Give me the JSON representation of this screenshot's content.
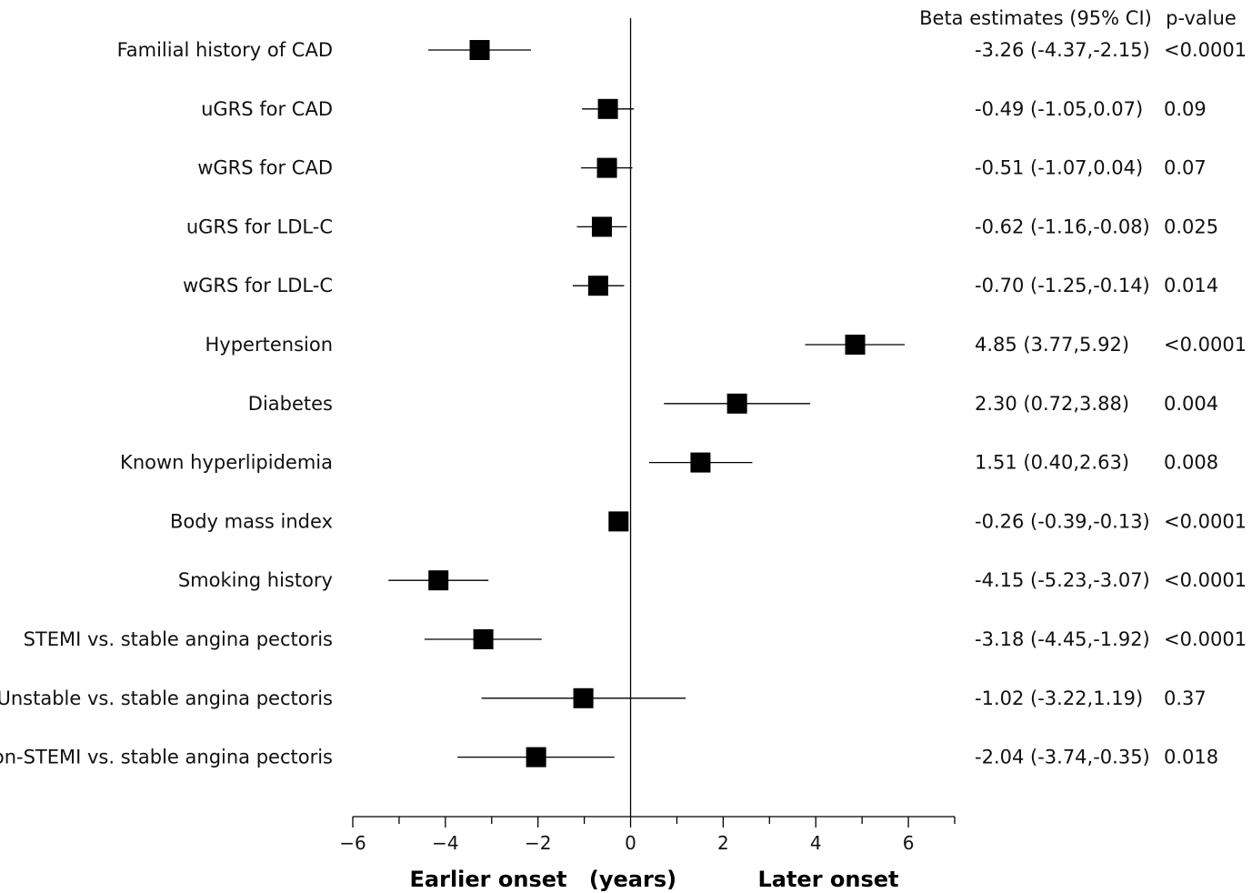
{
  "chart_data": {
    "type": "forest",
    "headers": {
      "estimate": "Beta estimates (95% CI)",
      "pvalue": "p-value"
    },
    "rows": [
      {
        "label": "Familial history of CAD",
        "beta": -3.26,
        "lo": -4.37,
        "hi": -2.15,
        "ci_text": "-3.26 (-4.37,-2.15)",
        "p": "<0.0001"
      },
      {
        "label": "uGRS for CAD",
        "beta": -0.49,
        "lo": -1.05,
        "hi": 0.07,
        "ci_text": "-0.49 (-1.05,0.07)",
        "p": "0.09"
      },
      {
        "label": "wGRS for CAD",
        "beta": -0.51,
        "lo": -1.07,
        "hi": 0.04,
        "ci_text": "-0.51 (-1.07,0.04)",
        "p": "0.07"
      },
      {
        "label": "uGRS for LDL-C",
        "beta": -0.62,
        "lo": -1.16,
        "hi": -0.08,
        "ci_text": "-0.62 (-1.16,-0.08)",
        "p": "0.025"
      },
      {
        "label": "wGRS for LDL-C",
        "beta": -0.7,
        "lo": -1.25,
        "hi": -0.14,
        "ci_text": "-0.70 (-1.25,-0.14)",
        "p": "0.014"
      },
      {
        "label": "Hypertension",
        "beta": 4.85,
        "lo": 3.77,
        "hi": 5.92,
        "ci_text": "4.85 (3.77,5.92)",
        "p": "<0.0001"
      },
      {
        "label": "Diabetes",
        "beta": 2.3,
        "lo": 0.72,
        "hi": 3.88,
        "ci_text": "2.30 (0.72,3.88)",
        "p": "0.004"
      },
      {
        "label": "Known hyperlipidemia",
        "beta": 1.51,
        "lo": 0.4,
        "hi": 2.63,
        "ci_text": "1.51 (0.40,2.63)",
        "p": "0.008"
      },
      {
        "label": "Body mass index",
        "beta": -0.26,
        "lo": -0.39,
        "hi": -0.13,
        "ci_text": "-0.26 (-0.39,-0.13)",
        "p": "<0.0001"
      },
      {
        "label": "Smoking history",
        "beta": -4.15,
        "lo": -5.23,
        "hi": -3.07,
        "ci_text": "-4.15 (-5.23,-3.07)",
        "p": "<0.0001"
      },
      {
        "label": "STEMI vs. stable angina pectoris",
        "beta": -3.18,
        "lo": -4.45,
        "hi": -1.92,
        "ci_text": "-3.18 (-4.45,-1.92)",
        "p": "<0.0001"
      },
      {
        "label": "Unstable vs. stable angina pectoris",
        "beta": -1.02,
        "lo": -3.22,
        "hi": 1.19,
        "ci_text": "-1.02 (-3.22,1.19)",
        "p": "0.37"
      },
      {
        "label": "non-STEMI vs. stable angina pectoris",
        "beta": -2.04,
        "lo": -3.74,
        "hi": -0.35,
        "ci_text": "-2.04 (-3.74,-0.35)",
        "p": "0.018"
      }
    ],
    "xlim": [
      -6,
      7
    ],
    "xticks": [
      -6,
      -4,
      -2,
      0,
      2,
      4,
      6
    ],
    "xtick_labels": [
      "−6",
      "−4",
      "−2",
      "0",
      "2",
      "4",
      "6"
    ],
    "xlabel": {
      "left": "Earlier onset",
      "center": "(years)",
      "right": "Later onset"
    },
    "reference_line": 0
  }
}
